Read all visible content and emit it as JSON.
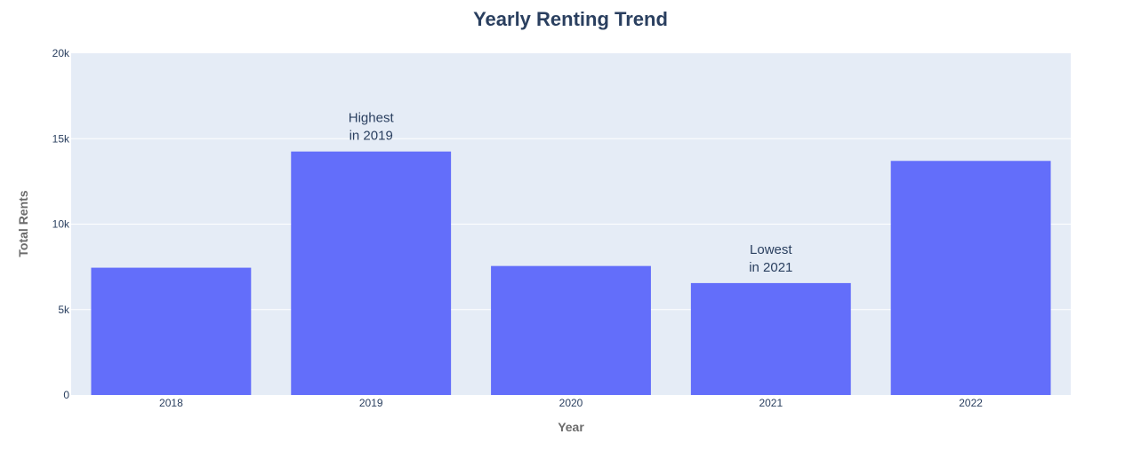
{
  "chart_data": {
    "type": "bar",
    "title": "Yearly Renting Trend",
    "xlabel": "Year",
    "ylabel": "Total Rents",
    "categories": [
      "2018",
      "2019",
      "2020",
      "2021",
      "2022"
    ],
    "values": [
      7450,
      14250,
      7550,
      6550,
      13700
    ],
    "ylim": [
      0,
      20000
    ],
    "yticks": [
      0,
      5000,
      10000,
      15000,
      20000
    ],
    "ytick_labels": [
      "0",
      "5k",
      "10k",
      "15k",
      "20k"
    ],
    "grid": true,
    "legend": "none",
    "annotations": [
      {
        "category": "2019",
        "lines": [
          "Highest",
          "in 2019"
        ]
      },
      {
        "category": "2021",
        "lines": [
          "Lowest",
          "in 2021"
        ]
      }
    ],
    "colors": {
      "bar": "#636efa",
      "plot_bg": "#e5ecf6",
      "grid": "#ffffff",
      "text": "#2a3f5f"
    }
  }
}
